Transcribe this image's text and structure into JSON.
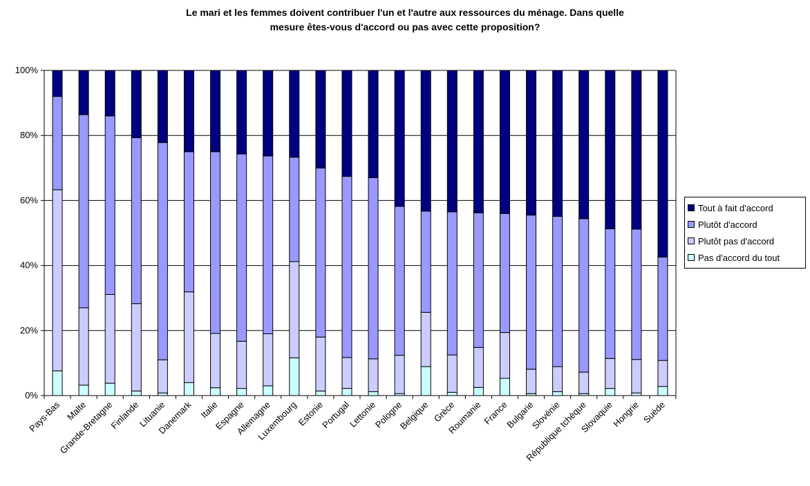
{
  "chart_data": {
    "type": "bar",
    "stacked": true,
    "percent": true,
    "title_lines": [
      "Le mari et les femmes doivent contribuer l'un et l'autre aux ressources du ménage. Dans quelle",
      "mesure êtes-vous d'accord ou pas avec cette proposition?"
    ],
    "categories": [
      "Pays-Bas",
      "Malte",
      "Grande-Bretagne",
      "Finlande",
      "Lituanie",
      "Danemark",
      "Italie",
      "Espagne",
      "Allemagne",
      "Luxembourg",
      "Estonie",
      "Portugal",
      "Lettonie",
      "Pologne",
      "Belgique",
      "Grèce",
      "Roumanie",
      "France",
      "Bulgarie",
      "Slovénie",
      "République tchèque",
      "Slovaquie",
      "Hongrie",
      "Suède"
    ],
    "ylim": [
      0,
      100
    ],
    "yticks": [
      0,
      20,
      40,
      60,
      80,
      100
    ],
    "ytick_labels": [
      "0%",
      "20%",
      "40%",
      "60%",
      "80%",
      "100%"
    ],
    "grid": true,
    "legend_position": "right",
    "series": [
      {
        "name": "Pas d'accord du tout",
        "color": "#CCFFFF",
        "values": [
          7.6,
          3.2,
          3.8,
          1.4,
          0.8,
          4.0,
          2.4,
          2.2,
          3.0,
          11.6,
          1.4,
          2.2,
          1.2,
          0.6,
          8.9,
          1.0,
          2.5,
          5.3,
          0.6,
          1.2,
          0.6,
          2.2,
          0.8,
          2.8
        ]
      },
      {
        "name": "Plutôt pas d'accord",
        "color": "#CCCCFF",
        "values": [
          55.7,
          23.8,
          27.3,
          26.9,
          10.2,
          27.9,
          16.7,
          14.5,
          16.0,
          29.6,
          16.6,
          9.5,
          10.1,
          11.8,
          16.7,
          11.5,
          12.3,
          14.1,
          7.5,
          7.7,
          6.6,
          9.2,
          10.3,
          8.0
        ]
      },
      {
        "name": "Plutôt d'accord",
        "color": "#9999FF",
        "values": [
          28.7,
          59.4,
          54.9,
          51.0,
          66.8,
          43.1,
          55.9,
          57.6,
          54.7,
          32.1,
          52.0,
          55.7,
          55.7,
          45.8,
          31.1,
          44.0,
          41.4,
          36.6,
          47.4,
          46.2,
          47.2,
          39.9,
          40.1,
          31.8
        ]
      },
      {
        "name": "Tout à fait d'accord",
        "color": "#000080",
        "values": [
          8.0,
          13.6,
          14.0,
          20.7,
          22.2,
          25.0,
          25.0,
          25.7,
          26.3,
          26.7,
          30.0,
          32.6,
          33.0,
          41.8,
          43.3,
          43.5,
          43.8,
          44.0,
          44.5,
          44.9,
          45.6,
          48.7,
          48.8,
          57.4
        ]
      }
    ]
  }
}
